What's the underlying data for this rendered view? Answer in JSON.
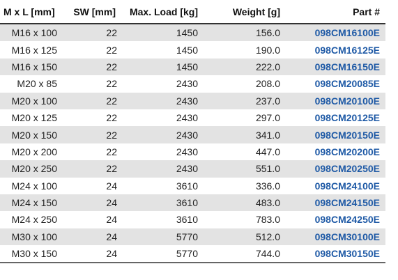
{
  "headers": {
    "size": "M x L [mm]",
    "sw": "SW [mm]",
    "load": "Max. Load [kg]",
    "weight": "Weight [g]",
    "part": "Part #"
  },
  "rows": [
    {
      "size": "M16 x 100",
      "sw": "22",
      "load": "1450",
      "weight": "156.0",
      "part": "098CM16100E"
    },
    {
      "size": "M16 x 125",
      "sw": "22",
      "load": "1450",
      "weight": "190.0",
      "part": "098CM16125E"
    },
    {
      "size": "M16 x 150",
      "sw": "22",
      "load": "1450",
      "weight": "222.0",
      "part": "098CM16150E"
    },
    {
      "size": "M20 x 85",
      "sw": "22",
      "load": "2430",
      "weight": "208.0",
      "part": "098CM20085E"
    },
    {
      "size": "M20 x 100",
      "sw": "22",
      "load": "2430",
      "weight": "237.0",
      "part": "098CM20100E"
    },
    {
      "size": "M20 x 125",
      "sw": "22",
      "load": "2430",
      "weight": "297.0",
      "part": "098CM20125E"
    },
    {
      "size": "M20 x 150",
      "sw": "22",
      "load": "2430",
      "weight": "341.0",
      "part": "098CM20150E"
    },
    {
      "size": "M20 x 200",
      "sw": "22",
      "load": "2430",
      "weight": "447.0",
      "part": "098CM20200E"
    },
    {
      "size": "M20 x 250",
      "sw": "22",
      "load": "2430",
      "weight": "551.0",
      "part": "098CM20250E"
    },
    {
      "size": "M24 x 100",
      "sw": "24",
      "load": "3610",
      "weight": "336.0",
      "part": "098CM24100E"
    },
    {
      "size": "M24 x 150",
      "sw": "24",
      "load": "3610",
      "weight": "483.0",
      "part": "098CM24150E"
    },
    {
      "size": "M24 x 250",
      "sw": "24",
      "load": "3610",
      "weight": "783.0",
      "part": "098CM24250E"
    },
    {
      "size": "M30 x 100",
      "sw": "24",
      "load": "5770",
      "weight": "512.0",
      "part": "098CM30100E"
    },
    {
      "size": "M30 x 150",
      "sw": "24",
      "load": "5770",
      "weight": "744.0",
      "part": "098CM30150E"
    }
  ],
  "colors": {
    "stripe": "#e3e3e3",
    "part_number": "#1f5aa6",
    "rule": "#333333"
  }
}
